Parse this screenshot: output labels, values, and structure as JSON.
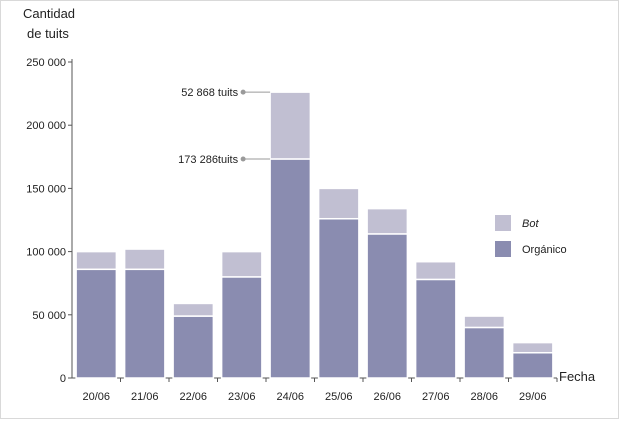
{
  "chart_data": {
    "type": "bar",
    "stacked": true,
    "ylabel_lines": [
      "Cantidad",
      "de tuits"
    ],
    "xlabel": "Fecha",
    "categories": [
      "20/06",
      "21/06",
      "22/06",
      "23/06",
      "24/06",
      "25/06",
      "26/06",
      "27/06",
      "28/06",
      "29/06"
    ],
    "series": [
      {
        "name": "Orgánico",
        "color": "#8a8cb0",
        "values": [
          86000,
          86000,
          49000,
          80000,
          173286,
          126000,
          114000,
          78000,
          40000,
          20000
        ]
      },
      {
        "name": "Bot",
        "color": "#c1bfd2",
        "values": [
          14000,
          16000,
          10000,
          20000,
          52868,
          24000,
          20000,
          14000,
          9000,
          8000
        ]
      }
    ],
    "y_ticks": [
      0,
      50000,
      100000,
      150000,
      200000,
      250000
    ],
    "y_tick_labels": [
      "0",
      "50 000",
      "100 000",
      "150 000",
      "200 000",
      "250 000"
    ],
    "ylim": [
      0,
      250000
    ],
    "grid": false,
    "legend_position": "right",
    "legend_order": [
      "Bot",
      "Orgánico"
    ],
    "annotations": [
      {
        "text": "52 868 tuits",
        "category": "24/06",
        "series": "Bot"
      },
      {
        "text": "173 286tuits",
        "category": "24/06",
        "series": "Orgánico"
      }
    ]
  }
}
